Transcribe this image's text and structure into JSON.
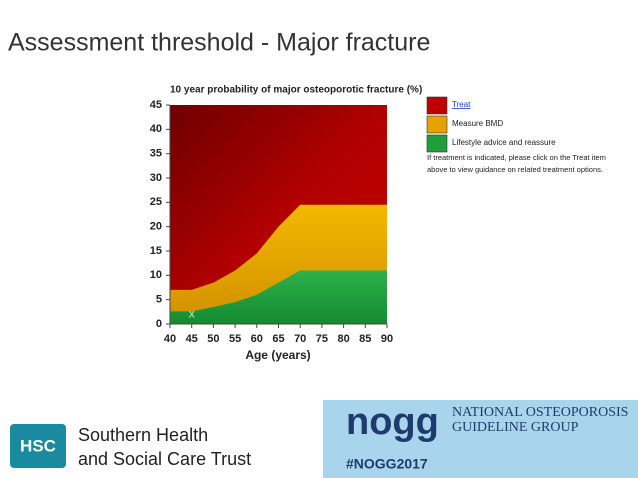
{
  "title": "Assessment threshold - Major fracture",
  "chart_data": {
    "type": "area",
    "title": "10 year probability of major osteoporotic fracture (%)",
    "x_label": "Age (years)",
    "x": [
      40,
      45,
      50,
      55,
      60,
      65,
      70,
      75,
      80,
      85,
      90
    ],
    "series": [
      {
        "name": "Treat",
        "color": "#c00000"
      },
      {
        "name": "Measure BMD",
        "color": "#e5a300",
        "values": [
          7,
          7,
          8.5,
          11,
          14.5,
          20,
          24.5,
          24.5,
          24.5,
          24.5,
          24.5
        ]
      },
      {
        "name": "Lifestyle advice and reassure",
        "color": "#1f9e3a",
        "values": [
          2.6,
          2.6,
          3.5,
          4.5,
          6,
          8.5,
          11,
          11,
          11,
          11,
          11
        ]
      }
    ],
    "points": {
      "label": "x",
      "x": [
        45
      ],
      "y": [
        2
      ]
    },
    "xlim": [
      40,
      90
    ],
    "xticks": [
      40,
      45,
      50,
      55,
      60,
      65,
      70,
      75,
      80,
      85,
      90
    ],
    "ylim": [
      0,
      45
    ],
    "yticks": [
      0,
      5,
      10,
      15,
      20,
      25,
      30,
      35,
      40,
      45
    ],
    "grid": false,
    "legend_note": "If treatment is indicated, please click on the Treat item above to view guidance on related treatment options."
  },
  "footer": {
    "hsc": "HSC",
    "trust": [
      "Southern Health",
      "and Social Care Trust"
    ],
    "nogg": "nogg",
    "group": [
      "NATIONAL OSTEOPOROSIS",
      "GUIDELINE GROUP"
    ],
    "hashtag": "#NOGG2017"
  }
}
